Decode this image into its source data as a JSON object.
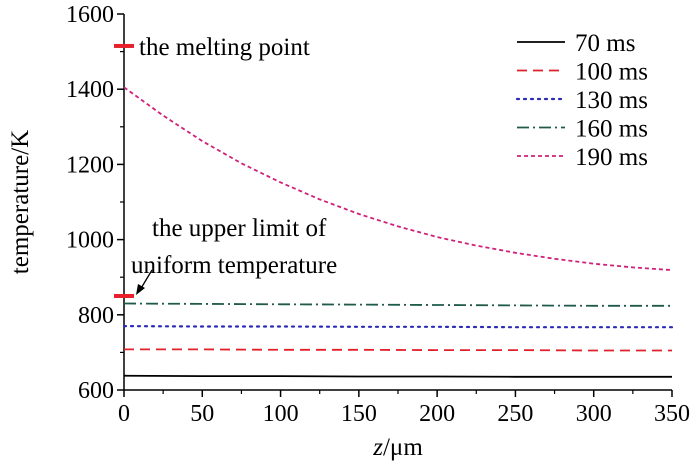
{
  "chart_data": {
    "type": "line",
    "xlabel_italic": "z",
    "xlabel_unit": "/μm",
    "ylabel": "temperature/K",
    "xlim": [
      0,
      350
    ],
    "ylim": [
      600,
      1600
    ],
    "xticks": [
      0,
      50,
      100,
      150,
      200,
      250,
      300,
      350
    ],
    "yticks": [
      600,
      800,
      1000,
      1200,
      1400,
      1600
    ],
    "grid": false,
    "legend_position": "top-right",
    "series": [
      {
        "name": "70 ms",
        "color": "#000000",
        "dash": "solid",
        "x": [
          0,
          50,
          100,
          150,
          200,
          250,
          300,
          350
        ],
        "y": [
          638,
          637,
          637,
          636,
          636,
          635,
          635,
          635
        ]
      },
      {
        "name": "100 ms",
        "color": "#e0202a",
        "dash": "dashed",
        "x": [
          0,
          50,
          100,
          150,
          200,
          250,
          300,
          350
        ],
        "y": [
          708,
          708,
          707,
          707,
          706,
          706,
          705,
          705
        ]
      },
      {
        "name": "130 ms",
        "color": "#2b2bb8",
        "dash": "dotted",
        "x": [
          0,
          50,
          100,
          150,
          200,
          250,
          300,
          350
        ],
        "y": [
          770,
          769,
          769,
          768,
          768,
          767,
          767,
          767
        ]
      },
      {
        "name": "160 ms",
        "color": "#1f5a4a",
        "dash": "dashdot",
        "x": [
          0,
          50,
          100,
          150,
          200,
          250,
          300,
          350
        ],
        "y": [
          830,
          829,
          828,
          827,
          826,
          825,
          824,
          824
        ]
      },
      {
        "name": "190 ms",
        "color": "#d0207a",
        "dash": "shortdash",
        "x": [
          0,
          25,
          50,
          75,
          100,
          125,
          150,
          175,
          200,
          225,
          250,
          275,
          300,
          325,
          350
        ],
        "y": [
          1405,
          1330,
          1262,
          1203,
          1152,
          1107,
          1068,
          1035,
          1007,
          984,
          965,
          949,
          936,
          926,
          919
        ]
      }
    ],
    "annotations": [
      {
        "text": "the melting point",
        "value": 1515,
        "marker_color": "#e8202a"
      },
      {
        "text_line1": "the upper limit of",
        "text_line2": "uniform temperature",
        "value": 850,
        "marker_color": "#e8202a"
      }
    ]
  }
}
